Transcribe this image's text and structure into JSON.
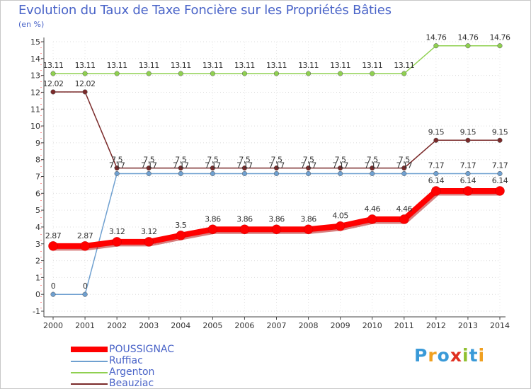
{
  "chart_data": {
    "type": "line",
    "title": "Evolution du Taux de Taxe Foncière sur les Propriétés Bâties",
    "ylabel": "(en %)",
    "xlabel": "",
    "ylim": [
      -1,
      15
    ],
    "yticks": [
      "-1",
      "0",
      "1",
      "2",
      "3",
      "4",
      "5",
      "6",
      "7",
      "8",
      "9",
      "10",
      "11",
      "12",
      "13",
      "14",
      "15"
    ],
    "categories": [
      "2000",
      "2001",
      "2002",
      "2003",
      "2004",
      "2005",
      "2006",
      "2007",
      "2008",
      "2009",
      "2010",
      "2011",
      "2012",
      "2013",
      "2014"
    ],
    "series": [
      {
        "name": "POUSSIGNAC",
        "color": "#ff0000",
        "values": [
          2.87,
          2.87,
          3.12,
          3.12,
          3.5,
          3.86,
          3.86,
          3.86,
          3.86,
          4.05,
          4.46,
          4.46,
          6.14,
          6.14,
          6.14
        ],
        "labels": [
          "2.87",
          "2.87",
          "3.12",
          "3.12",
          "3.5",
          "3.86",
          "3.86",
          "3.86",
          "3.86",
          "4.05",
          "4.46",
          "4.46",
          "6.14",
          "6.14",
          "6.14"
        ]
      },
      {
        "name": "Ruffiac",
        "color": "#6fa0d0",
        "values": [
          0,
          0,
          7.17,
          7.17,
          7.17,
          7.17,
          7.17,
          7.17,
          7.17,
          7.17,
          7.17,
          7.17,
          7.17,
          7.17,
          7.17
        ],
        "labels": [
          "0",
          "0",
          "7.17",
          "7.17",
          "7.17",
          "7.17",
          "7.17",
          "7.17",
          "7.17",
          "7.17",
          "7.17",
          "7.17",
          "7.17",
          "7.17",
          "7.17"
        ]
      },
      {
        "name": "Argenton",
        "color": "#8fd050",
        "values": [
          13.11,
          13.11,
          13.11,
          13.11,
          13.11,
          13.11,
          13.11,
          13.11,
          13.11,
          13.11,
          13.11,
          13.11,
          14.76,
          14.76,
          14.76
        ],
        "labels": [
          "13.11",
          "13.11",
          "13.11",
          "13.11",
          "13.11",
          "13.11",
          "13.11",
          "13.11",
          "13.11",
          "13.11",
          "13.11",
          "13.11",
          "14.76",
          "14.76",
          "14.76"
        ]
      },
      {
        "name": "Beauziac",
        "color": "#7a2a2a",
        "values": [
          12.02,
          12.02,
          7.5,
          7.5,
          7.5,
          7.5,
          7.5,
          7.5,
          7.5,
          7.5,
          7.5,
          7.5,
          9.15,
          9.15,
          9.15
        ],
        "labels": [
          "12.02",
          "12.02",
          "7.5",
          "7.5",
          "7.5",
          "7.5",
          "7.5",
          "7.5",
          "7.5",
          "7.5",
          "7.5",
          "7.5",
          "9.15",
          "9.15",
          "9.15"
        ]
      }
    ]
  },
  "brand": {
    "letters": [
      "P",
      "r",
      "o",
      "x",
      "i",
      "t",
      "i"
    ],
    "colors": [
      "#3a9ad8",
      "#f0a020",
      "#3a9ad8",
      "#e03020",
      "#90c030",
      "#3a9ad8",
      "#f0a020"
    ]
  }
}
